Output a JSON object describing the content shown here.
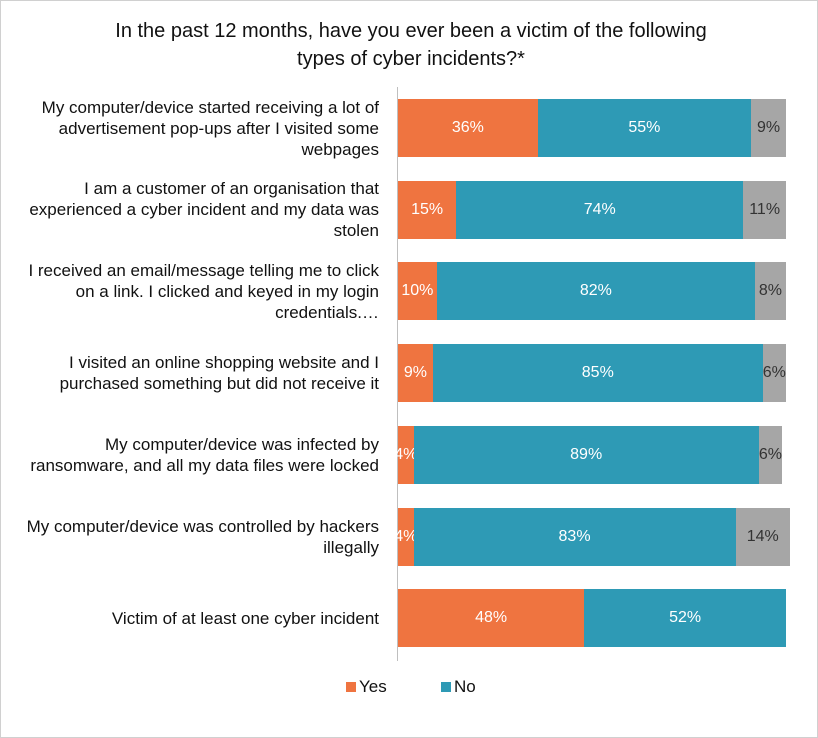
{
  "chart_data": {
    "type": "stacked_barh",
    "title": "In the past 12 months, have you ever been a victim of the following types of cyber incidents?*",
    "categories": [
      "My computer/device started receiving a lot of advertisement pop-ups after I visited some webpages",
      "I am a customer of an organisation that experienced a cyber incident and my data was stolen",
      "I received an email/message telling me to click on a link. I clicked and keyed in my login credentials.…",
      "I visited an online shopping website and I purchased something but did not receive it",
      "My computer/device was infected by ransomware, and all my data files were locked",
      "My computer/device was controlled by hackers illegally",
      "Victim of at least one cyber incident"
    ],
    "xlim": [
      0,
      100
    ],
    "series": [
      {
        "name": "Yes",
        "color": "#ef7440",
        "label_color": "#ffffff",
        "values": [
          36,
          15,
          10,
          9,
          4,
          4,
          48
        ],
        "value_labels": [
          "36%",
          "15%",
          "10%",
          "9%",
          "4%",
          "4%",
          "48%"
        ]
      },
      {
        "name": "No",
        "color": "#2e9ab5",
        "label_color": "#ffffff",
        "values": [
          55,
          74,
          82,
          85,
          89,
          83,
          52
        ],
        "value_labels": [
          "55%",
          "74%",
          "82%",
          "85%",
          "89%",
          "83%",
          "52%"
        ]
      },
      {
        "color": "#a6a6a6",
        "label_color": "#333333",
        "values": [
          9,
          11,
          8,
          6,
          6,
          14,
          null
        ],
        "value_labels": [
          "9%",
          "11%",
          "8%",
          "6%",
          "6%",
          "14%",
          null
        ]
      }
    ],
    "legend": "bottom"
  }
}
